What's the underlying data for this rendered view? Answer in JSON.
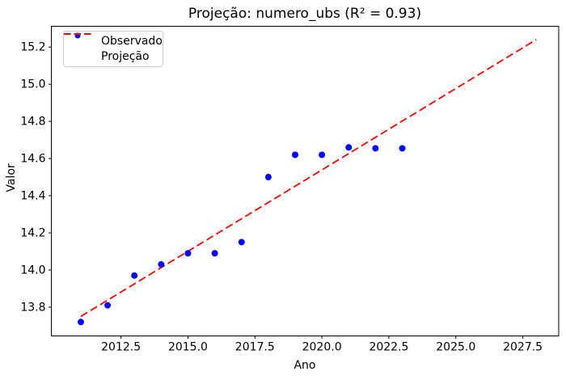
{
  "figure": {
    "title": "Projeção: numero_ubs (R² = 0.93)"
  },
  "legend": {
    "position": "upper left",
    "items": [
      {
        "label": "Observado",
        "marker": "dot",
        "color": "#0000ff"
      },
      {
        "label": "Projeção",
        "marker": "dashed-line",
        "color": "#ff0000"
      }
    ]
  },
  "chart_data": {
    "type": "scatter",
    "title": "Projeção: numero_ubs (R² = 0.93)",
    "xlabel": "Ano",
    "ylabel": "Valor",
    "xlim": [
      2009.9,
      2028.84
    ],
    "ylim": [
      13.645,
      15.312
    ],
    "xticks": [
      2012.5,
      2015.0,
      2017.5,
      2020.0,
      2022.5,
      2025.0,
      2027.5
    ],
    "xtick_labels": [
      "2012.5",
      "2015.0",
      "2017.5",
      "2020.0",
      "2022.5",
      "2025.0",
      "2027.5"
    ],
    "yticks": [
      13.8,
      14.0,
      14.2,
      14.4,
      14.6,
      14.8,
      15.0,
      15.2
    ],
    "ytick_labels": [
      "13.8",
      "14.0",
      "14.2",
      "14.4",
      "14.6",
      "14.8",
      "15.0",
      "15.2"
    ],
    "grid": false,
    "legend_position": "upper left",
    "series": [
      {
        "name": "Observado",
        "type": "scatter",
        "color": "#0000ff",
        "x": [
          2011,
          2012,
          2013,
          2014,
          2015,
          2016,
          2017,
          2018,
          2019,
          2020,
          2021,
          2022,
          2023
        ],
        "y": [
          13.72,
          13.81,
          13.97,
          14.03,
          14.09,
          14.09,
          14.15,
          14.5,
          14.62,
          14.62,
          14.66,
          14.655,
          14.655
        ]
      },
      {
        "name": "Projeção",
        "type": "line",
        "style": "dashed",
        "color": "#ff0000",
        "x": [
          2011,
          2028
        ],
        "y": [
          13.75,
          15.24
        ]
      }
    ]
  }
}
